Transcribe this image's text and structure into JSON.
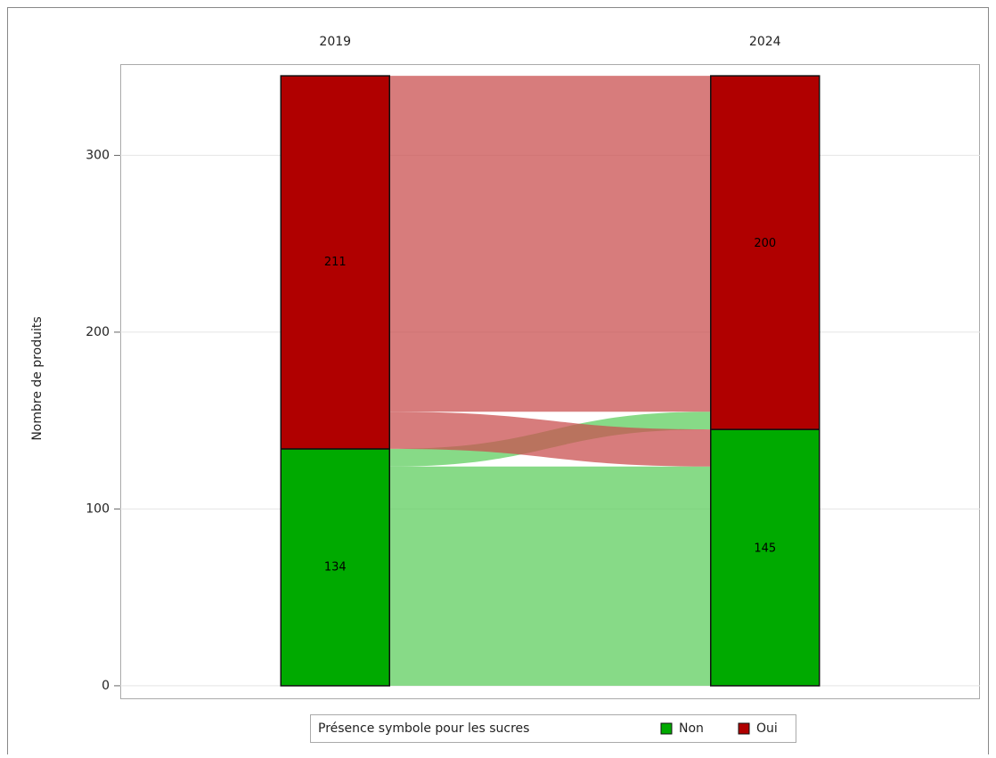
{
  "chart_data": {
    "type": "alluvial",
    "ylabel": "Nombre de produits",
    "categories": [
      "2019",
      "2024"
    ],
    "series": [
      {
        "name": "Non",
        "color": "#00aa00",
        "flow_color": "#5fce5f",
        "values": [
          134,
          145
        ]
      },
      {
        "name": "Oui",
        "color": "#b00000",
        "flow_color": "#c95050",
        "values": [
          211,
          200
        ]
      }
    ],
    "flows": [
      {
        "from": "Non",
        "to": "Non",
        "value": 124
      },
      {
        "from": "Non",
        "to": "Oui",
        "value": 10
      },
      {
        "from": "Oui",
        "to": "Non",
        "value": 21
      },
      {
        "from": "Oui",
        "to": "Oui",
        "value": 190
      }
    ],
    "ylim": [
      -7.6,
      351.6
    ],
    "yticks": [
      0,
      100,
      200,
      300
    ],
    "grid": true,
    "legend_title": "Présence symbole pour les sucres",
    "legend_position": "bottom"
  }
}
